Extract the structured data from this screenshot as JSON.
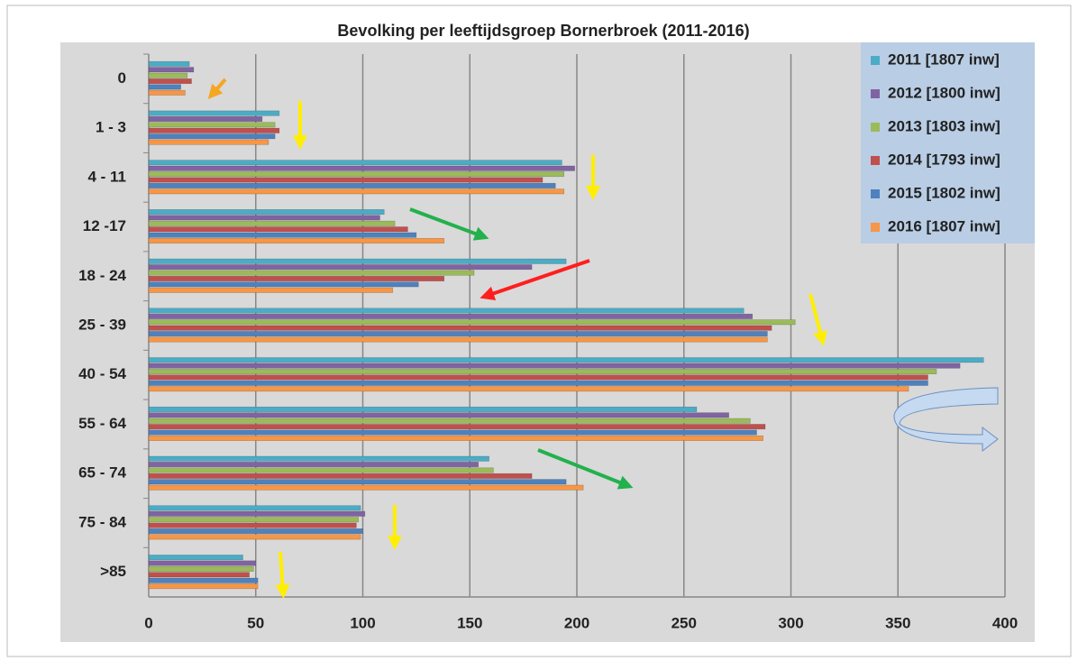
{
  "chart_data": {
    "type": "hbar",
    "title": "Bevolking per leeftijdsgroep Bornerbroek (2011-2016)",
    "categories": [
      "0",
      "1 - 3",
      "4 - 11",
      "12 -17",
      "18 - 24",
      "25 - 39",
      "40 - 54",
      "55 - 64",
      "65 - 74",
      "75 - 84",
      ">85"
    ],
    "series": [
      {
        "name": "2011 [1807 inw]",
        "color": "#4bacc6",
        "values": [
          19,
          61,
          193,
          110,
          195,
          278,
          390,
          256,
          159,
          99,
          44
        ]
      },
      {
        "name": "2012 [1800 inw]",
        "color": "#8064a2",
        "values": [
          21,
          53,
          199,
          108,
          179,
          282,
          379,
          271,
          154,
          101,
          50
        ]
      },
      {
        "name": "2013 [1803 inw]",
        "color": "#9bbb59",
        "values": [
          18,
          59,
          194,
          115,
          152,
          302,
          368,
          281,
          161,
          98,
          49
        ]
      },
      {
        "name": "2014 [1793 inw]",
        "color": "#c0504d",
        "values": [
          20,
          61,
          184,
          121,
          138,
          291,
          364,
          288,
          179,
          97,
          47
        ]
      },
      {
        "name": "2015 [1802 inw]",
        "color": "#4f81bd",
        "values": [
          15,
          59,
          190,
          125,
          126,
          289,
          364,
          284,
          195,
          100,
          51
        ]
      },
      {
        "name": "2016 [1807 inw]",
        "color": "#f79646",
        "values": [
          17,
          56,
          194,
          138,
          114,
          289,
          355,
          287,
          203,
          99,
          51
        ]
      }
    ],
    "xlim": [
      0,
      400
    ],
    "xticks": [
      0,
      50,
      100,
      150,
      200,
      250,
      300,
      350,
      400
    ],
    "grid": true,
    "legend": "top-right"
  }
}
